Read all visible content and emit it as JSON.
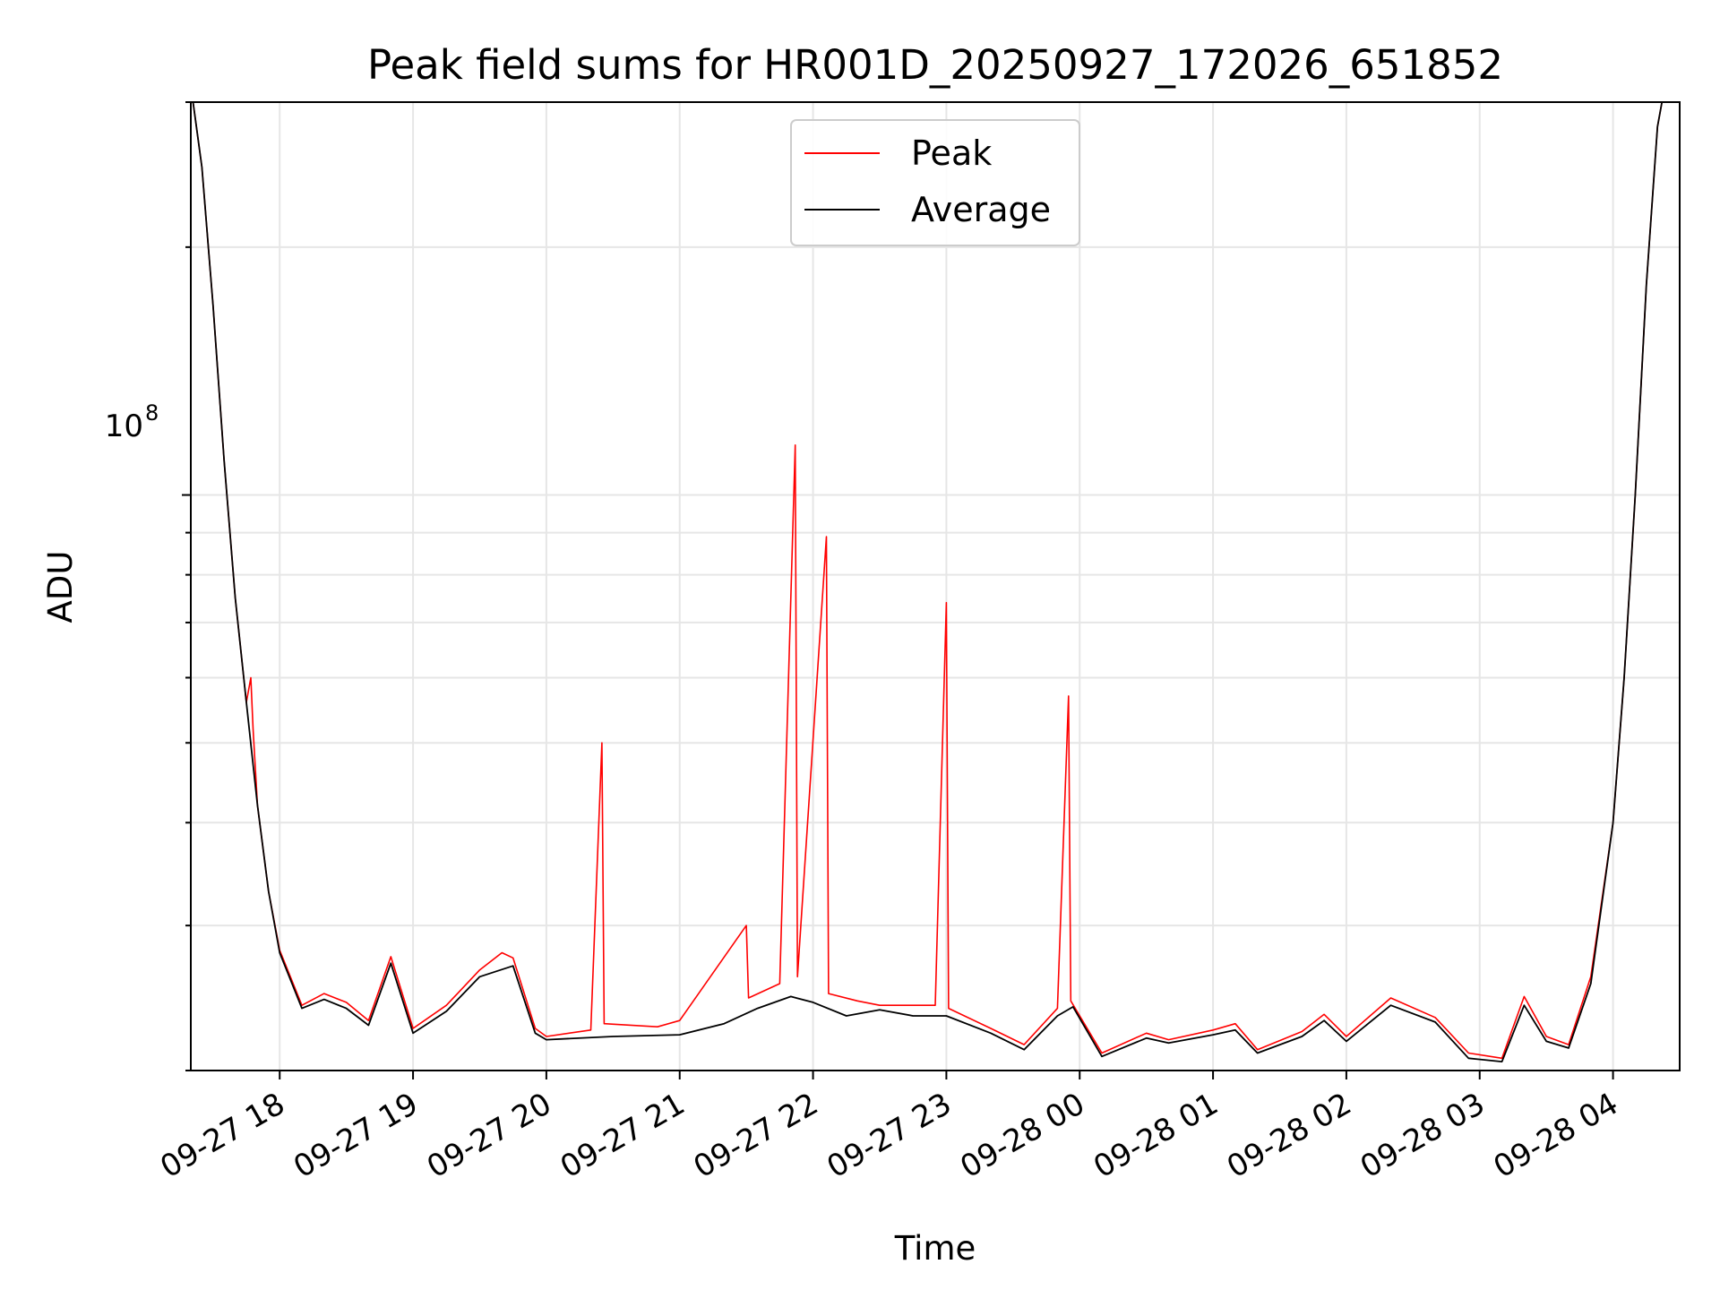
{
  "chart_data": {
    "type": "line",
    "title": "Peak field sums for HR001D_20250927_172026_651852",
    "xlabel": "Time",
    "ylabel": "ADU",
    "yscale": "log",
    "ylim": [
      20000000,
      300000000
    ],
    "xlim": [
      "2025-09-27 17:20",
      "2025-09-28 04:30"
    ],
    "x_tick_labels": [
      "09-27 18",
      "09-27 19",
      "09-27 20",
      "09-27 21",
      "09-27 22",
      "09-27 23",
      "09-28 00",
      "09-28 01",
      "09-28 02",
      "09-28 03",
      "09-28 04"
    ],
    "y_major_tick": {
      "value": 100000000,
      "base": "10",
      "exponent": "8"
    },
    "grid": true,
    "legend_position": "upper center",
    "series": [
      {
        "name": "Peak",
        "color": "#ff0000",
        "points": [
          [
            "2025-09-27 17:21",
            300000000
          ],
          [
            "2025-09-27 17:25",
            250000000
          ],
          [
            "2025-09-27 17:30",
            170000000
          ],
          [
            "2025-09-27 17:35",
            110000000
          ],
          [
            "2025-09-27 17:40",
            75000000
          ],
          [
            "2025-09-27 17:45",
            56000000
          ],
          [
            "2025-09-27 17:47",
            60000000
          ],
          [
            "2025-09-27 17:48",
            52000000
          ],
          [
            "2025-09-27 17:50",
            42000000
          ],
          [
            "2025-09-27 17:55",
            33000000
          ],
          [
            "2025-09-27 18:00",
            28000000
          ],
          [
            "2025-09-27 18:10",
            24000000
          ],
          [
            "2025-09-27 18:20",
            24800000
          ],
          [
            "2025-09-27 18:30",
            24200000
          ],
          [
            "2025-09-27 18:40",
            23000000
          ],
          [
            "2025-09-27 18:50",
            27500000
          ],
          [
            "2025-09-27 19:00",
            22500000
          ],
          [
            "2025-09-27 19:15",
            24000000
          ],
          [
            "2025-09-27 19:30",
            26500000
          ],
          [
            "2025-09-27 19:40",
            27800000
          ],
          [
            "2025-09-27 19:45",
            27400000
          ],
          [
            "2025-09-27 19:55",
            22500000
          ],
          [
            "2025-09-27 20:00",
            22000000
          ],
          [
            "2025-09-27 20:20",
            22400000
          ],
          [
            "2025-09-27 20:25",
            50000000
          ],
          [
            "2025-09-27 20:26",
            22800000
          ],
          [
            "2025-09-27 20:50",
            22600000
          ],
          [
            "2025-09-27 21:00",
            23000000
          ],
          [
            "2025-09-27 21:30",
            30000000
          ],
          [
            "2025-09-27 21:31",
            24500000
          ],
          [
            "2025-09-27 21:45",
            25500000
          ],
          [
            "2025-09-27 21:52",
            115000000
          ],
          [
            "2025-09-27 21:53",
            26000000
          ],
          [
            "2025-09-27 22:06",
            89000000
          ],
          [
            "2025-09-27 22:07",
            24800000
          ],
          [
            "2025-09-27 22:20",
            24300000
          ],
          [
            "2025-09-27 22:30",
            24000000
          ],
          [
            "2025-09-27 22:55",
            24000000
          ],
          [
            "2025-09-27 23:00",
            74000000
          ],
          [
            "2025-09-27 23:01",
            23800000
          ],
          [
            "2025-09-27 23:20",
            22500000
          ],
          [
            "2025-09-27 23:35",
            21500000
          ],
          [
            "2025-09-27 23:50",
            23800000
          ],
          [
            "2025-09-27 23:55",
            57000000
          ],
          [
            "2025-09-27 23:56",
            24300000
          ],
          [
            "2025-09-28 00:10",
            21000000
          ],
          [
            "2025-09-28 00:30",
            22200000
          ],
          [
            "2025-09-28 00:40",
            21800000
          ],
          [
            "2025-09-28 01:00",
            22400000
          ],
          [
            "2025-09-28 01:10",
            22800000
          ],
          [
            "2025-09-28 01:20",
            21200000
          ],
          [
            "2025-09-28 01:40",
            22300000
          ],
          [
            "2025-09-28 01:50",
            23400000
          ],
          [
            "2025-09-28 02:00",
            22000000
          ],
          [
            "2025-09-28 02:20",
            24500000
          ],
          [
            "2025-09-28 02:40",
            23200000
          ],
          [
            "2025-09-28 02:55",
            21000000
          ],
          [
            "2025-09-28 03:10",
            20700000
          ],
          [
            "2025-09-28 03:20",
            24600000
          ],
          [
            "2025-09-28 03:30",
            22000000
          ],
          [
            "2025-09-28 03:40",
            21500000
          ],
          [
            "2025-09-28 03:50",
            26000000
          ],
          [
            "2025-09-28 04:00",
            40000000
          ],
          [
            "2025-09-28 04:05",
            60000000
          ],
          [
            "2025-09-28 04:10",
            100000000
          ],
          [
            "2025-09-28 04:15",
            180000000
          ],
          [
            "2025-09-28 04:20",
            280000000
          ],
          [
            "2025-09-28 04:22",
            300000000
          ]
        ]
      },
      {
        "name": "Average",
        "color": "#000000",
        "points": [
          [
            "2025-09-27 17:21",
            300000000
          ],
          [
            "2025-09-27 17:25",
            250000000
          ],
          [
            "2025-09-27 17:30",
            170000000
          ],
          [
            "2025-09-27 17:35",
            110000000
          ],
          [
            "2025-09-27 17:40",
            75000000
          ],
          [
            "2025-09-27 17:45",
            56000000
          ],
          [
            "2025-09-27 17:50",
            42000000
          ],
          [
            "2025-09-27 17:55",
            33000000
          ],
          [
            "2025-09-27 18:00",
            27800000
          ],
          [
            "2025-09-27 18:10",
            23800000
          ],
          [
            "2025-09-27 18:20",
            24400000
          ],
          [
            "2025-09-27 18:30",
            23800000
          ],
          [
            "2025-09-27 18:40",
            22700000
          ],
          [
            "2025-09-27 18:50",
            27000000
          ],
          [
            "2025-09-27 19:00",
            22200000
          ],
          [
            "2025-09-27 19:15",
            23600000
          ],
          [
            "2025-09-27 19:30",
            26000000
          ],
          [
            "2025-09-27 19:45",
            26800000
          ],
          [
            "2025-09-27 19:55",
            22200000
          ],
          [
            "2025-09-27 20:00",
            21800000
          ],
          [
            "2025-09-27 20:30",
            22000000
          ],
          [
            "2025-09-27 21:00",
            22100000
          ],
          [
            "2025-09-27 21:20",
            22800000
          ],
          [
            "2025-09-27 21:35",
            23800000
          ],
          [
            "2025-09-27 21:50",
            24600000
          ],
          [
            "2025-09-27 22:00",
            24200000
          ],
          [
            "2025-09-27 22:15",
            23300000
          ],
          [
            "2025-09-27 22:30",
            23700000
          ],
          [
            "2025-09-27 22:45",
            23300000
          ],
          [
            "2025-09-27 23:00",
            23300000
          ],
          [
            "2025-09-27 23:20",
            22200000
          ],
          [
            "2025-09-27 23:35",
            21200000
          ],
          [
            "2025-09-27 23:50",
            23300000
          ],
          [
            "2025-09-27 23:57",
            23900000
          ],
          [
            "2025-09-28 00:10",
            20800000
          ],
          [
            "2025-09-28 00:30",
            21900000
          ],
          [
            "2025-09-28 00:40",
            21600000
          ],
          [
            "2025-09-28 01:00",
            22100000
          ],
          [
            "2025-09-28 01:10",
            22400000
          ],
          [
            "2025-09-28 01:20",
            21000000
          ],
          [
            "2025-09-28 01:40",
            22000000
          ],
          [
            "2025-09-28 01:50",
            23000000
          ],
          [
            "2025-09-28 02:00",
            21700000
          ],
          [
            "2025-09-28 02:20",
            24000000
          ],
          [
            "2025-09-28 02:40",
            22900000
          ],
          [
            "2025-09-28 02:55",
            20700000
          ],
          [
            "2025-09-28 03:10",
            20500000
          ],
          [
            "2025-09-28 03:20",
            24000000
          ],
          [
            "2025-09-28 03:30",
            21700000
          ],
          [
            "2025-09-28 03:40",
            21300000
          ],
          [
            "2025-09-28 03:50",
            25500000
          ],
          [
            "2025-09-28 04:00",
            40000000
          ],
          [
            "2025-09-28 04:05",
            60000000
          ],
          [
            "2025-09-28 04:10",
            100000000
          ],
          [
            "2025-09-28 04:15",
            180000000
          ],
          [
            "2025-09-28 04:20",
            280000000
          ],
          [
            "2025-09-28 04:22",
            300000000
          ]
        ]
      }
    ]
  }
}
